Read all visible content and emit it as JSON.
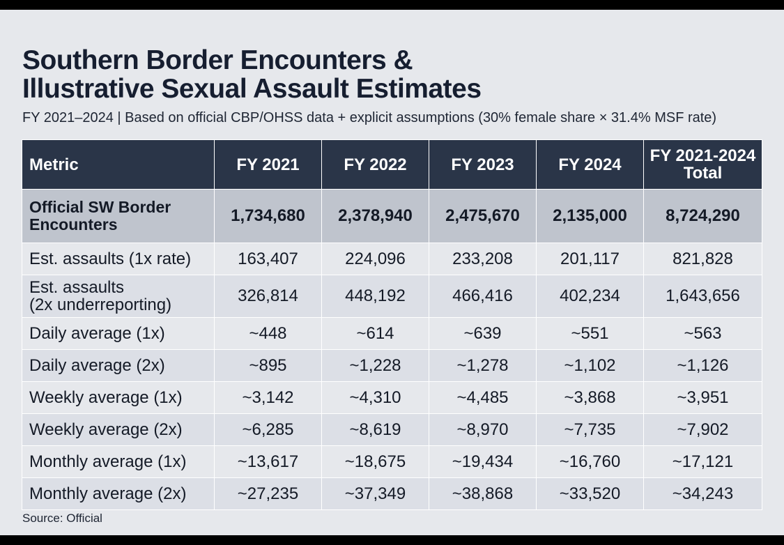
{
  "chart_data": {
    "type": "table",
    "title_line1": "Southern Border Encounters &",
    "title_line2": "Illustrative Sexual Assault Estimates",
    "subtitle": "FY 2021–2024 | Based on official CBP/OHSS data + explicit assumptions (30% female share × 31.4% MSF rate)",
    "columns": [
      "Metric",
      "FY 2021",
      "FY 2022",
      "FY 2023",
      "FY 2024",
      "FY 2021-2024 Total"
    ],
    "column_total_line1": "FY 2021-2024",
    "column_total_line2": "Total",
    "rows": [
      {
        "metric_line1": "Official SW Border",
        "metric_line2": "Encounters",
        "values": [
          "1,734,680",
          "2,378,940",
          "2,475,670",
          "2,135,000",
          "8,724,290"
        ]
      },
      {
        "metric_line1": "Est. assaults (1x rate)",
        "metric_line2": "",
        "values": [
          "163,407",
          "224,096",
          "233,208",
          "201,117",
          "821,828"
        ]
      },
      {
        "metric_line1": "Est. assaults",
        "metric_line2": "(2x underreporting)",
        "values": [
          "326,814",
          "448,192",
          "466,416",
          "402,234",
          "1,643,656"
        ]
      },
      {
        "metric_line1": "Daily average (1x)",
        "metric_line2": "",
        "values": [
          "~448",
          "~614",
          "~639",
          "~551",
          "~563"
        ]
      },
      {
        "metric_line1": "Daily average (2x)",
        "metric_line2": "",
        "values": [
          "~895",
          "~1,228",
          "~1,278",
          "~1,102",
          "~1,126"
        ]
      },
      {
        "metric_line1": "Weekly average (1x)",
        "metric_line2": "",
        "values": [
          "~3,142",
          "~4,310",
          "~4,485",
          "~3,868",
          "~3,951"
        ]
      },
      {
        "metric_line1": "Weekly average (2x)",
        "metric_line2": "",
        "values": [
          "~6,285",
          "~8,619",
          "~8,970",
          "~7,735",
          "~7,902"
        ]
      },
      {
        "metric_line1": "Monthly average (1x)",
        "metric_line2": "",
        "values": [
          "~13,617",
          "~18,675",
          "~19,434",
          "~16,760",
          "~17,121"
        ]
      },
      {
        "metric_line1": "Monthly average (2x)",
        "metric_line2": "",
        "values": [
          "~27,235",
          "~37,349",
          "~38,868",
          "~33,520",
          "~34,243"
        ]
      }
    ],
    "source": "Source: Official",
    "colors": {
      "header_bg": "#2a3548",
      "highlight_row_bg": "#bfc4cd",
      "page_bg": "#e6e8ec",
      "stripe_bg": "#dcdfe6",
      "text": "#141a26"
    }
  }
}
